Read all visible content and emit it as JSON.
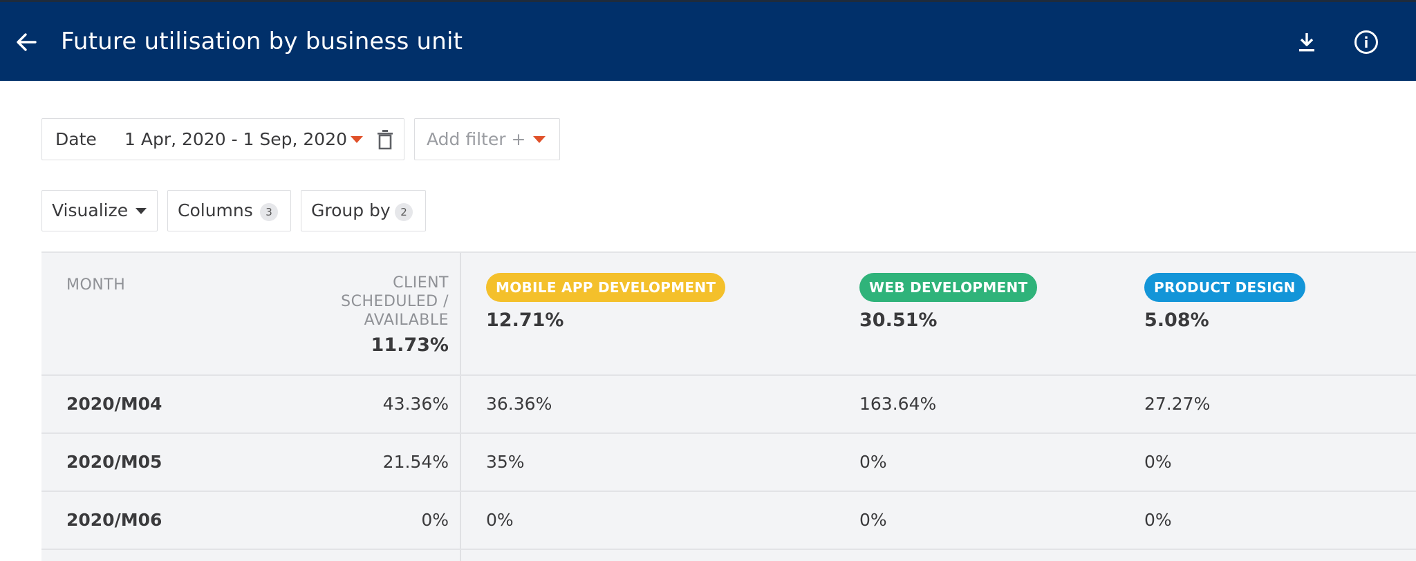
{
  "header": {
    "title": "Future utilisation by business unit",
    "back_icon": "arrow-left-icon",
    "download_icon": "download-icon",
    "info_icon": "info-circle-icon",
    "background_color": "#01306a"
  },
  "filters": {
    "date": {
      "label": "Date",
      "value": "1 Apr, 2020 - 1 Sep, 2020",
      "caret_icon": "caret-down-icon",
      "delete_icon": "trash-icon"
    },
    "add_filter": {
      "label": "Add filter +",
      "caret_icon": "caret-down-icon"
    },
    "accent_color": "#e0512a"
  },
  "toolbar": {
    "visualize": {
      "label": "Visualize",
      "caret_icon": "caret-down-icon"
    },
    "columns": {
      "label": "Columns",
      "count": "3"
    },
    "group_by": {
      "label": "Group by",
      "count": "2"
    }
  },
  "table": {
    "month_header": "MONTH",
    "client_header_lines": [
      "CLIENT",
      "SCHEDULED /",
      "AVAILABLE"
    ],
    "client_total": "11.73%",
    "units": [
      {
        "name": "MOBILE APP DEVELOPMENT",
        "total": "12.71%",
        "color": "#f4c02b"
      },
      {
        "name": "WEB DEVELOPMENT",
        "total": "30.51%",
        "color": "#2fb37a"
      },
      {
        "name": "PRODUCT DESIGN",
        "total": "5.08%",
        "color": "#1395d8"
      }
    ],
    "rows": [
      {
        "month": "2020/M04",
        "total": "43.36%",
        "values": [
          "36.36%",
          "163.64%",
          "27.27%"
        ]
      },
      {
        "month": "2020/M05",
        "total": "21.54%",
        "values": [
          "35%",
          "0%",
          "0%"
        ]
      },
      {
        "month": "2020/M06",
        "total": "0%",
        "values": [
          "0%",
          "0%",
          "0%"
        ]
      }
    ]
  }
}
